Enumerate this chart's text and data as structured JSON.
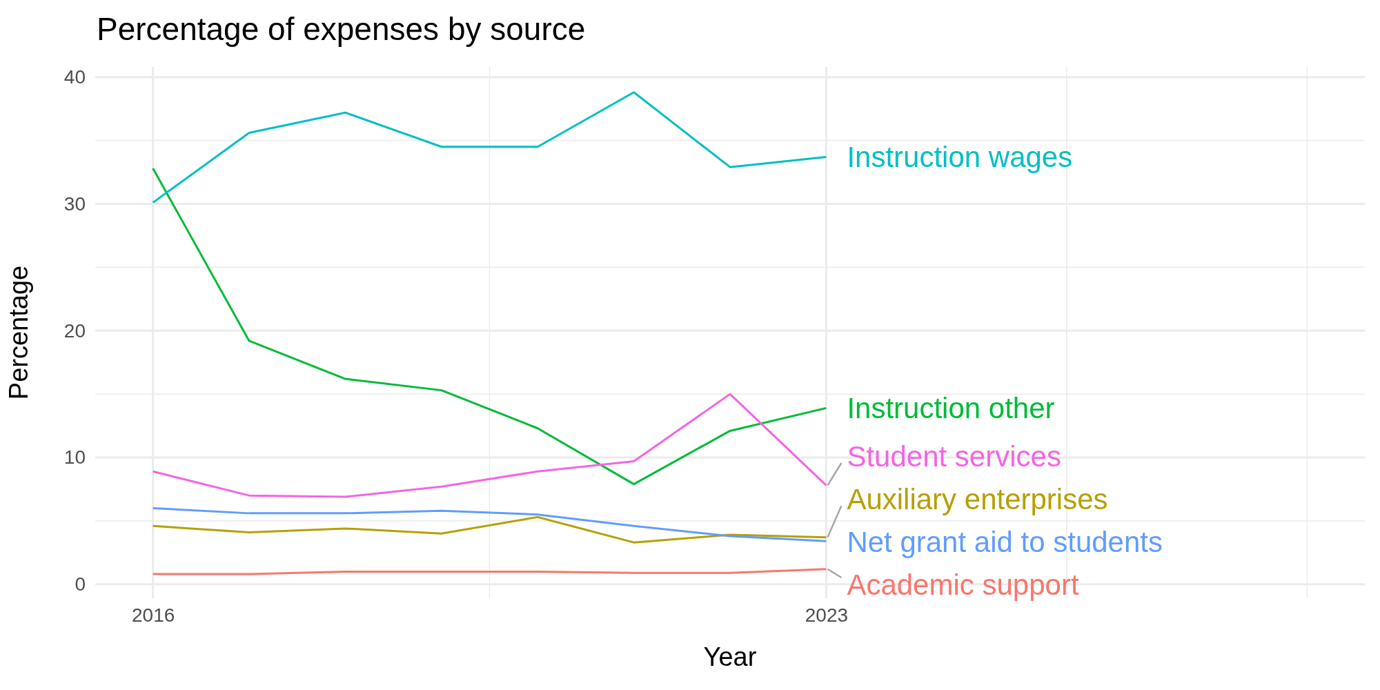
{
  "chart_data": {
    "type": "line",
    "title": "Percentage of expenses by source",
    "xlabel": "Year",
    "ylabel": "Percentage",
    "x": [
      2016,
      2017,
      2018,
      2019,
      2020,
      2021,
      2022,
      2023
    ],
    "xlim": [
      2015.4,
      2028.6
    ],
    "xticks": [
      2016,
      {
        "value": 2019.5,
        "label": null
      },
      2023,
      {
        "value": 2025.5,
        "label": null
      },
      {
        "value": 2028,
        "label": null
      }
    ],
    "ylim": [
      -1.1,
      40.8
    ],
    "yticks": [
      0,
      {
        "value": 5,
        "label": null
      },
      10,
      {
        "value": 15,
        "label": null
      },
      20,
      {
        "value": 25,
        "label": null
      },
      30,
      {
        "value": 35,
        "label": null
      },
      40
    ],
    "grid": true,
    "line_style": "solid",
    "series": [
      {
        "name": "Academic support",
        "color": "#f8766d",
        "values": [
          0.8,
          0.8,
          1.0,
          1.0,
          1.0,
          0.9,
          0.9,
          1.2
        ]
      },
      {
        "name": "Auxiliary enterprises",
        "color": "#b79f00",
        "values": [
          4.6,
          4.1,
          4.4,
          4.0,
          5.3,
          3.3,
          3.9,
          3.7
        ]
      },
      {
        "name": "Instruction other",
        "color": "#00ba38",
        "values": [
          32.8,
          19.2,
          16.2,
          15.3,
          12.3,
          7.9,
          12.1,
          13.9
        ]
      },
      {
        "name": "Instruction wages",
        "color": "#00bfc4",
        "values": [
          30.1,
          35.6,
          37.2,
          34.5,
          34.5,
          38.8,
          32.9,
          33.7
        ]
      },
      {
        "name": "Net grant aid to students",
        "color": "#619cff",
        "values": [
          6.0,
          5.6,
          5.6,
          5.8,
          5.5,
          4.6,
          3.8,
          3.4
        ]
      },
      {
        "name": "Student services",
        "color": "#f564e3",
        "values": [
          8.9,
          7.0,
          6.9,
          7.7,
          8.9,
          9.7,
          15.0,
          7.8
        ]
      }
    ]
  }
}
